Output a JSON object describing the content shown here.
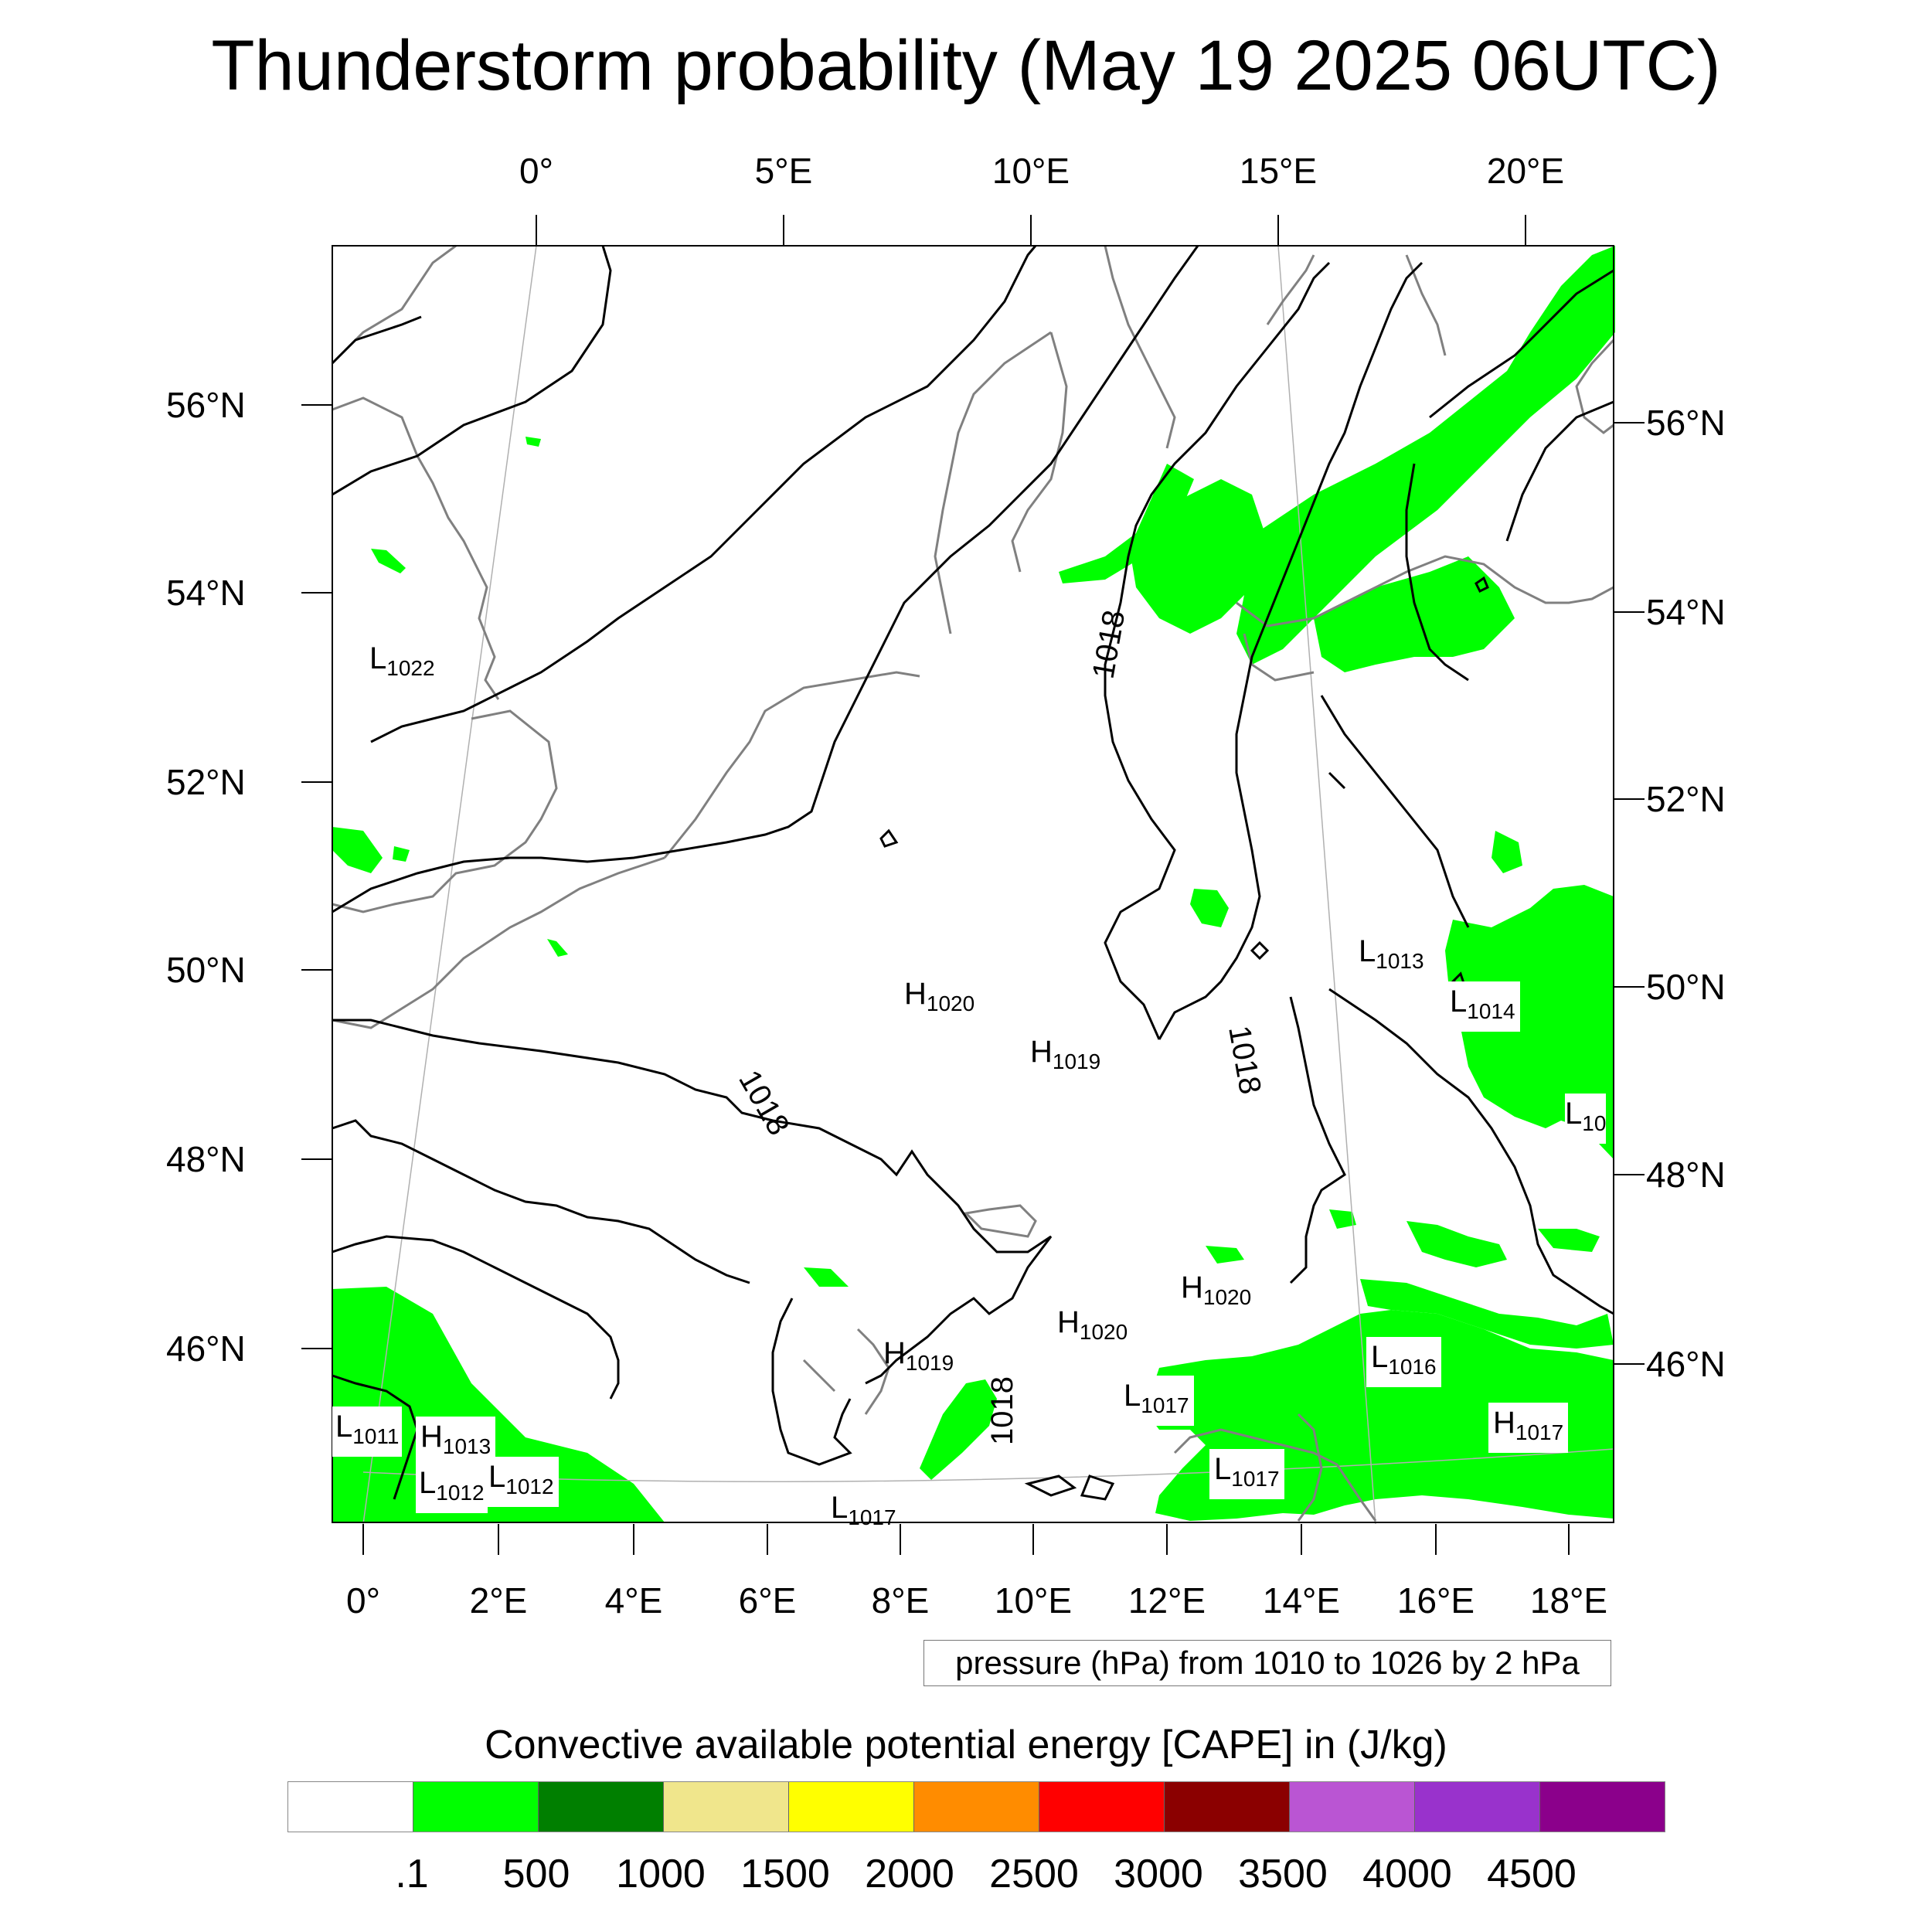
{
  "title": "Thunderstorm probability (May 19 2025 06UTC)",
  "top_axis_labels": [
    "0°",
    "5°E",
    "10°E",
    "15°E",
    "20°E"
  ],
  "bottom_axis_labels": [
    "0°",
    "2°E",
    "4°E",
    "6°E",
    "8°E",
    "10°E",
    "12°E",
    "14°E",
    "16°E",
    "18°E"
  ],
  "left_axis_labels": [
    "56°N",
    "54°N",
    "52°N",
    "50°N",
    "48°N",
    "46°N"
  ],
  "right_axis_labels": [
    "56°N",
    "54°N",
    "52°N",
    "50°N",
    "48°N",
    "46°N"
  ],
  "pressure_note": "pressure (hPa) from 1010 to 1026 by 2 hPa",
  "pressure_centers": [
    {
      "letter": "L",
      "value": "1022"
    },
    {
      "letter": "H",
      "value": "1020"
    },
    {
      "letter": "H",
      "value": "1019"
    },
    {
      "letter": "L",
      "value": "1013"
    },
    {
      "letter": "L",
      "value": "1014"
    },
    {
      "letter": "L",
      "value": "10"
    },
    {
      "letter": "H",
      "value": "1020"
    },
    {
      "letter": "H",
      "value": "1020"
    },
    {
      "letter": "H",
      "value": "1019"
    },
    {
      "letter": "L",
      "value": "1016"
    },
    {
      "letter": "L",
      "value": "1017"
    },
    {
      "letter": "H",
      "value": "1017"
    },
    {
      "letter": "L",
      "value": "1017"
    },
    {
      "letter": "L",
      "value": "1011"
    },
    {
      "letter": "H",
      "value": "1013"
    },
    {
      "letter": "L",
      "value": "1012"
    },
    {
      "letter": "L",
      "value": "1012"
    },
    {
      "letter": "L",
      "value": "1017"
    }
  ],
  "isobar_labels": [
    "1018",
    "1018",
    "1018",
    "1018"
  ],
  "colorbar": {
    "title": "Convective available potential energy [CAPE] in (J/kg)",
    "colors": [
      "#ffffff",
      "#00ff00",
      "#007f00",
      "#f0e68c",
      "#ffff00",
      "#ff8c00",
      "#ff0000",
      "#8b0000",
      "#ba55d3",
      "#9932cc",
      "#8b008b"
    ],
    "labels": [
      ".1",
      "500",
      "1000",
      "1500",
      "2000",
      "2500",
      "3000",
      "3500",
      "4000",
      "4500"
    ]
  },
  "colors": {
    "cape_low": "#00ff00",
    "coastline": "#808080",
    "isobar": "#000000",
    "graticule": "#aaaaaa"
  }
}
